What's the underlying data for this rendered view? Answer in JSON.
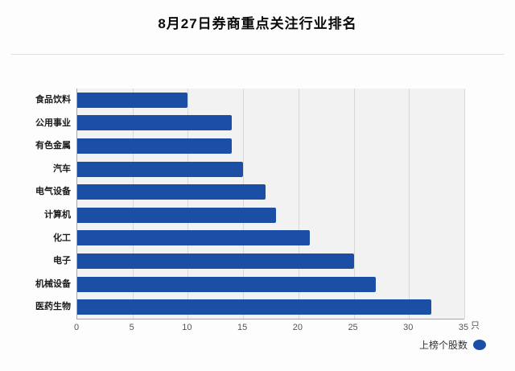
{
  "page": {
    "title": "8月27日券商重点关注行业排名"
  },
  "chart_data": {
    "type": "bar",
    "orientation": "horizontal",
    "title": "8月27日券商重点关注行业排名",
    "categories": [
      "食品饮料",
      "公用事业",
      "有色金属",
      "汽车",
      "电气设备",
      "计算机",
      "化工",
      "电子",
      "机械设备",
      "医药生物"
    ],
    "series": [
      {
        "name": "上榜个股数",
        "values": [
          10,
          14,
          14,
          15,
          17,
          18,
          21,
          25,
          27,
          32
        ],
        "color": "#1b4fa5"
      }
    ],
    "xlim": [
      0,
      35
    ],
    "xticks": [
      0,
      5,
      10,
      15,
      20,
      25,
      30,
      35
    ],
    "x_unit": "只",
    "grid": true,
    "legend_position": "bottom-right",
    "legend": {
      "label": "上榜个股数"
    }
  }
}
